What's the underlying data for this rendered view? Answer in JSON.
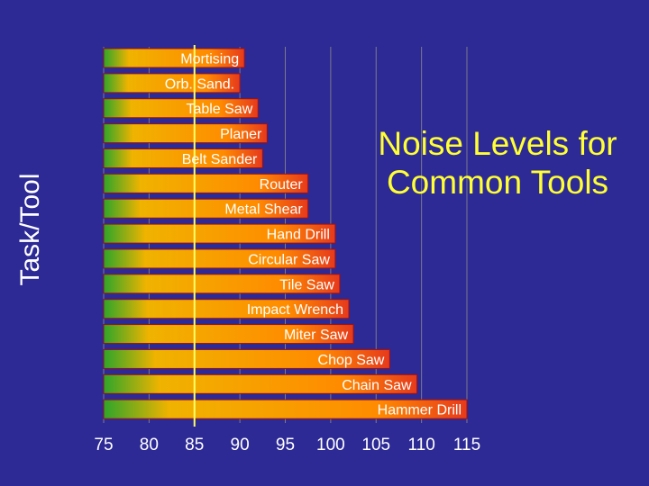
{
  "chart_data": {
    "type": "bar",
    "orientation": "horizontal",
    "title_lines": [
      "Noise Levels for",
      "Common Tools"
    ],
    "ylabel": "Task/Tool",
    "xlabel": "",
    "xlim": [
      75,
      115
    ],
    "x_ticks": [
      75,
      80,
      85,
      90,
      95,
      100,
      105,
      110,
      115
    ],
    "reference_line": 85,
    "grid": true,
    "categories": [
      "Mortising",
      "Orb. Sand.",
      "Table Saw",
      "Planer",
      "Belt Sander",
      "Router",
      "Metal Shear",
      "Hand Drill",
      "Circular Saw",
      "Tile Saw",
      "Impact Wrench",
      "Miter Saw",
      "Chop Saw",
      "Chain Saw",
      "Hammer Drill"
    ],
    "values": [
      90.5,
      90,
      92,
      93,
      92.5,
      97.5,
      97.5,
      100.5,
      100.5,
      101,
      102,
      102.5,
      106.5,
      109.5,
      115
    ],
    "colors": {
      "background": "#2d2a96",
      "bar_start": "#2ea52a",
      "bar_mid": "#ffb300",
      "bar_end": "#e63a1c",
      "bar_stroke": "#a01010",
      "reference_line": "#ffff66",
      "grid": "#7a7a8a",
      "title": "#ffff33",
      "text": "#ffffff"
    }
  }
}
